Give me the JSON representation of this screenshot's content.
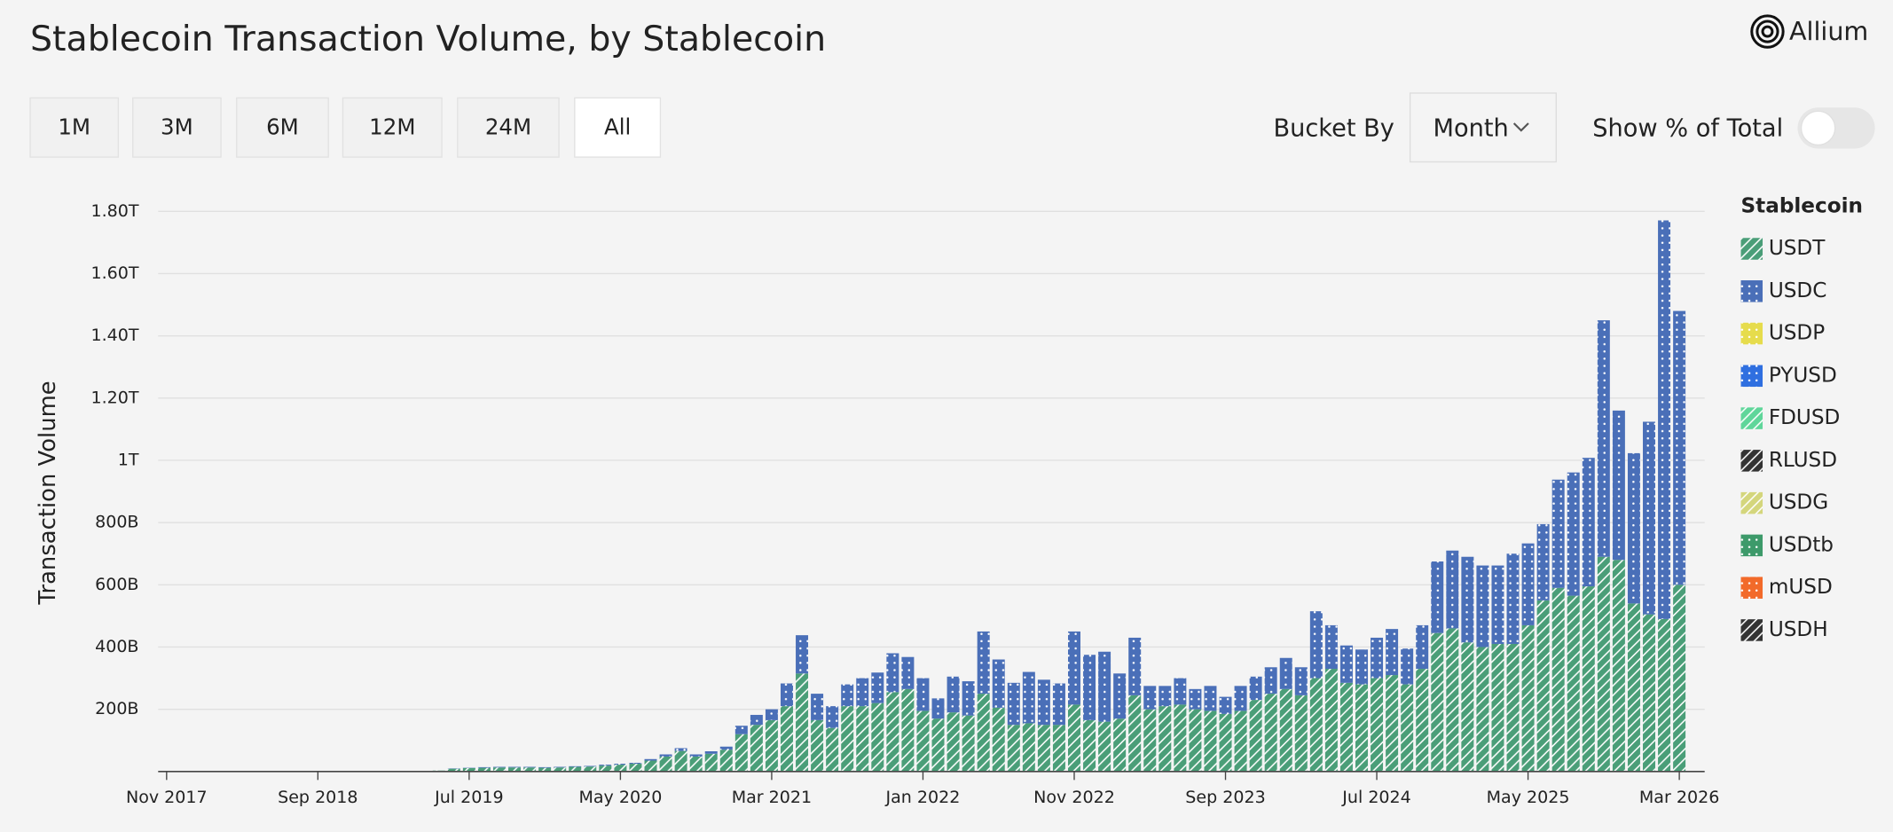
{
  "brand": "Allium",
  "controls": {
    "ranges": [
      "1M",
      "3M",
      "6M",
      "12M",
      "24M",
      "All"
    ],
    "selected": "All",
    "bucket_label": "Bucket By",
    "bucket_value": "Month",
    "toggle_label": "Show % of Total"
  },
  "chart_data": {
    "type": "stacked_bar",
    "title": "Stablecoin Transaction Volume, by Stablecoin",
    "y_label": "Transaction Volume",
    "legend_title": "Stablecoin",
    "categories": [
      "Nov 2017",
      null,
      null,
      null,
      null,
      null,
      null,
      null,
      null,
      null,
      "Sep 2018",
      null,
      null,
      null,
      null,
      null,
      null,
      null,
      null,
      null,
      "Jul 2019",
      null,
      null,
      null,
      null,
      null,
      null,
      null,
      null,
      null,
      "May 2020",
      null,
      null,
      null,
      null,
      null,
      null,
      null,
      null,
      null,
      "Mar 2021",
      null,
      null,
      null,
      null,
      null,
      null,
      null,
      null,
      null,
      "Jan 2022",
      null,
      null,
      null,
      null,
      null,
      null,
      null,
      null,
      null,
      "Nov 2022",
      null,
      null,
      null,
      null,
      null,
      null,
      null,
      null,
      null,
      "Sep 2023",
      null,
      null,
      null,
      null,
      null,
      null,
      null,
      null,
      null,
      "Jul 2024",
      null,
      null,
      null,
      null,
      null,
      null,
      null,
      null,
      null,
      "May 2025",
      null,
      null,
      null,
      null,
      null,
      null,
      null,
      null,
      null,
      "Mar 2026"
    ],
    "ylim": [
      0,
      1800
    ],
    "yticks": [
      {
        "value": 200,
        "label": "200B"
      },
      {
        "value": 400,
        "label": "400B"
      },
      {
        "value": 600,
        "label": "600B"
      },
      {
        "value": 800,
        "label": "800B"
      },
      {
        "value": 1000,
        "label": "1T"
      },
      {
        "value": 1200,
        "label": "1.20T"
      },
      {
        "value": 1400,
        "label": "1.40T"
      },
      {
        "value": 1600,
        "label": "1.60T"
      },
      {
        "value": 1800,
        "label": "1.80T"
      }
    ],
    "grid": true,
    "series": [
      {
        "name": "USDT",
        "color": "#4a9e78",
        "pattern": "hatch",
        "values": [
          0,
          0,
          0,
          0,
          0,
          0,
          0,
          0,
          0,
          0,
          0,
          0,
          0,
          0,
          0,
          0,
          0,
          0,
          3,
          9,
          11,
          12,
          13,
          13,
          13,
          12,
          13,
          15,
          16,
          19,
          22,
          25,
          35,
          48,
          66,
          48,
          57,
          70,
          120,
          150,
          165,
          210,
          315,
          165,
          140,
          210,
          210,
          220,
          255,
          265,
          195,
          170,
          190,
          180,
          250,
          205,
          150,
          155,
          150,
          150,
          215,
          165,
          160,
          170,
          245,
          200,
          210,
          215,
          200,
          195,
          185,
          195,
          230,
          250,
          265,
          245,
          300,
          330,
          285,
          280,
          300,
          310,
          280,
          330,
          445,
          460,
          415,
          400,
          410,
          410,
          470,
          550,
          590,
          565,
          595,
          690,
          680,
          540,
          505,
          490,
          600
        ]
      },
      {
        "name": "USDC",
        "color": "#4a6fb8",
        "pattern": "dots",
        "values": [
          0,
          0,
          0,
          0,
          0,
          0,
          0,
          0,
          0,
          0,
          0,
          0,
          0,
          0,
          0,
          0,
          0,
          0,
          0,
          1,
          1,
          2,
          2,
          2,
          2,
          2,
          2,
          2,
          2,
          3,
          3,
          3,
          5,
          7,
          9,
          7,
          8,
          10,
          27,
          32,
          35,
          73,
          123,
          85,
          70,
          70,
          90,
          98,
          125,
          103,
          105,
          65,
          115,
          110,
          200,
          155,
          135,
          165,
          145,
          133,
          235,
          210,
          225,
          145,
          185,
          75,
          65,
          85,
          65,
          80,
          55,
          80,
          75,
          85,
          100,
          90,
          215,
          140,
          120,
          112,
          130,
          148,
          115,
          140,
          230,
          250,
          275,
          262,
          252,
          290,
          263,
          245,
          348,
          396,
          413,
          760,
          480,
          483,
          619,
          1281,
          880
        ]
      },
      {
        "name": "USDP",
        "color": "#e6dc4c",
        "pattern": "dots",
        "values": [
          0,
          0,
          0,
          0,
          0,
          0,
          0,
          0,
          0,
          0,
          0,
          0,
          0,
          0,
          0,
          0,
          0,
          0,
          0,
          0,
          0,
          0,
          0,
          0,
          0,
          0,
          0,
          0,
          0,
          0,
          0,
          0,
          0,
          0,
          0,
          0,
          0,
          0,
          0,
          0,
          0,
          0,
          0,
          0,
          0,
          0,
          0,
          0,
          0,
          0,
          0,
          0,
          0,
          0,
          0,
          0,
          0,
          0,
          0,
          0,
          0,
          0,
          0,
          0,
          0,
          0,
          0,
          0,
          0,
          0,
          0,
          0,
          0,
          0,
          0,
          0,
          0,
          0,
          0,
          0,
          0,
          0,
          0,
          0,
          0,
          0,
          0,
          0,
          0,
          0,
          0,
          0,
          0,
          0,
          0,
          0,
          0,
          0,
          0,
          0,
          0
        ]
      },
      {
        "name": "PYUSD",
        "color": "#2f6fe0",
        "pattern": "dots",
        "values": [
          0,
          0,
          0,
          0,
          0,
          0,
          0,
          0,
          0,
          0,
          0,
          0,
          0,
          0,
          0,
          0,
          0,
          0,
          0,
          0,
          0,
          0,
          0,
          0,
          0,
          0,
          0,
          0,
          0,
          0,
          0,
          0,
          0,
          0,
          0,
          0,
          0,
          0,
          0,
          0,
          0,
          0,
          0,
          0,
          0,
          0,
          0,
          0,
          0,
          0,
          0,
          0,
          0,
          0,
          0,
          0,
          0,
          0,
          0,
          0,
          0,
          0,
          0,
          0,
          0,
          0,
          0,
          0,
          0,
          0,
          0,
          0,
          0,
          0,
          0,
          0,
          0,
          0,
          0,
          0,
          0,
          0,
          0,
          0,
          0,
          0,
          0,
          0,
          0,
          0,
          0,
          0,
          0,
          0,
          0,
          0,
          0,
          0,
          0,
          0,
          0
        ]
      },
      {
        "name": "FDUSD",
        "color": "#5fd69a",
        "pattern": "hatch",
        "values": [
          0,
          0,
          0,
          0,
          0,
          0,
          0,
          0,
          0,
          0,
          0,
          0,
          0,
          0,
          0,
          0,
          0,
          0,
          0,
          0,
          0,
          0,
          0,
          0,
          0,
          0,
          0,
          0,
          0,
          0,
          0,
          0,
          0,
          0,
          0,
          0,
          0,
          0,
          0,
          0,
          0,
          0,
          0,
          0,
          0,
          0,
          0,
          0,
          0,
          0,
          0,
          0,
          0,
          0,
          0,
          0,
          0,
          0,
          0,
          0,
          0,
          0,
          0,
          0,
          0,
          0,
          0,
          0,
          0,
          0,
          0,
          0,
          0,
          0,
          0,
          0,
          0,
          0,
          0,
          0,
          0,
          0,
          0,
          0,
          0,
          0,
          0,
          0,
          0,
          0,
          0,
          0,
          0,
          0,
          0,
          0,
          0,
          0,
          0,
          0,
          0
        ]
      },
      {
        "name": "RLUSD",
        "color": "#333333",
        "pattern": "hatch",
        "values": [
          0,
          0,
          0,
          0,
          0,
          0,
          0,
          0,
          0,
          0,
          0,
          0,
          0,
          0,
          0,
          0,
          0,
          0,
          0,
          0,
          0,
          0,
          0,
          0,
          0,
          0,
          0,
          0,
          0,
          0,
          0,
          0,
          0,
          0,
          0,
          0,
          0,
          0,
          0,
          0,
          0,
          0,
          0,
          0,
          0,
          0,
          0,
          0,
          0,
          0,
          0,
          0,
          0,
          0,
          0,
          0,
          0,
          0,
          0,
          0,
          0,
          0,
          0,
          0,
          0,
          0,
          0,
          0,
          0,
          0,
          0,
          0,
          0,
          0,
          0,
          0,
          0,
          0,
          0,
          0,
          0,
          0,
          0,
          0,
          0,
          0,
          0,
          0,
          0,
          0,
          0,
          0,
          0,
          0,
          0,
          0,
          0,
          0,
          0,
          0,
          0
        ]
      },
      {
        "name": "USDG",
        "color": "#d4d67c",
        "pattern": "hatch",
        "values": [
          0,
          0,
          0,
          0,
          0,
          0,
          0,
          0,
          0,
          0,
          0,
          0,
          0,
          0,
          0,
          0,
          0,
          0,
          0,
          0,
          0,
          0,
          0,
          0,
          0,
          0,
          0,
          0,
          0,
          0,
          0,
          0,
          0,
          0,
          0,
          0,
          0,
          0,
          0,
          0,
          0,
          0,
          0,
          0,
          0,
          0,
          0,
          0,
          0,
          0,
          0,
          0,
          0,
          0,
          0,
          0,
          0,
          0,
          0,
          0,
          0,
          0,
          0,
          0,
          0,
          0,
          0,
          0,
          0,
          0,
          0,
          0,
          0,
          0,
          0,
          0,
          0,
          0,
          0,
          0,
          0,
          0,
          0,
          0,
          0,
          0,
          0,
          0,
          0,
          0,
          0,
          0,
          0,
          0,
          0,
          0,
          0,
          0,
          0,
          0,
          0
        ]
      },
      {
        "name": "USDtb",
        "color": "#3d9a6a",
        "pattern": "dots",
        "values": [
          0,
          0,
          0,
          0,
          0,
          0,
          0,
          0,
          0,
          0,
          0,
          0,
          0,
          0,
          0,
          0,
          0,
          0,
          0,
          0,
          0,
          0,
          0,
          0,
          0,
          0,
          0,
          0,
          0,
          0,
          0,
          0,
          0,
          0,
          0,
          0,
          0,
          0,
          0,
          0,
          0,
          0,
          0,
          0,
          0,
          0,
          0,
          0,
          0,
          0,
          0,
          0,
          0,
          0,
          0,
          0,
          0,
          0,
          0,
          0,
          0,
          0,
          0,
          0,
          0,
          0,
          0,
          0,
          0,
          0,
          0,
          0,
          0,
          0,
          0,
          0,
          0,
          0,
          0,
          0,
          0,
          0,
          0,
          0,
          0,
          0,
          0,
          0,
          0,
          0,
          0,
          0,
          0,
          0,
          0,
          0,
          0,
          0,
          0,
          0,
          0
        ]
      },
      {
        "name": "mUSD",
        "color": "#f26a2a",
        "pattern": "dots",
        "values": [
          0,
          0,
          0,
          0,
          0,
          0,
          0,
          0,
          0,
          0,
          0,
          0,
          0,
          0,
          0,
          0,
          0,
          0,
          0,
          0,
          0,
          0,
          0,
          0,
          0,
          0,
          0,
          0,
          0,
          0,
          0,
          0,
          0,
          0,
          0,
          0,
          0,
          0,
          0,
          0,
          0,
          0,
          0,
          0,
          0,
          0,
          0,
          0,
          0,
          0,
          0,
          0,
          0,
          0,
          0,
          0,
          0,
          0,
          0,
          0,
          0,
          0,
          0,
          0,
          0,
          0,
          0,
          0,
          0,
          0,
          0,
          0,
          0,
          0,
          0,
          0,
          0,
          0,
          0,
          0,
          0,
          0,
          0,
          0,
          0,
          0,
          0,
          0,
          0,
          0,
          0,
          0,
          0,
          0,
          0,
          0,
          0,
          0,
          0,
          0,
          0
        ]
      },
      {
        "name": "USDH",
        "color": "#333333",
        "pattern": "hatch",
        "values": [
          0,
          0,
          0,
          0,
          0,
          0,
          0,
          0,
          0,
          0,
          0,
          0,
          0,
          0,
          0,
          0,
          0,
          0,
          0,
          0,
          0,
          0,
          0,
          0,
          0,
          0,
          0,
          0,
          0,
          0,
          0,
          0,
          0,
          0,
          0,
          0,
          0,
          0,
          0,
          0,
          0,
          0,
          0,
          0,
          0,
          0,
          0,
          0,
          0,
          0,
          0,
          0,
          0,
          0,
          0,
          0,
          0,
          0,
          0,
          0,
          0,
          0,
          0,
          0,
          0,
          0,
          0,
          0,
          0,
          0,
          0,
          0,
          0,
          0,
          0,
          0,
          0,
          0,
          0,
          0,
          0,
          0,
          0,
          0,
          0,
          0,
          0,
          0,
          0,
          0,
          0,
          0,
          0,
          0,
          0,
          0,
          0,
          0,
          0,
          0,
          0
        ]
      }
    ]
  }
}
